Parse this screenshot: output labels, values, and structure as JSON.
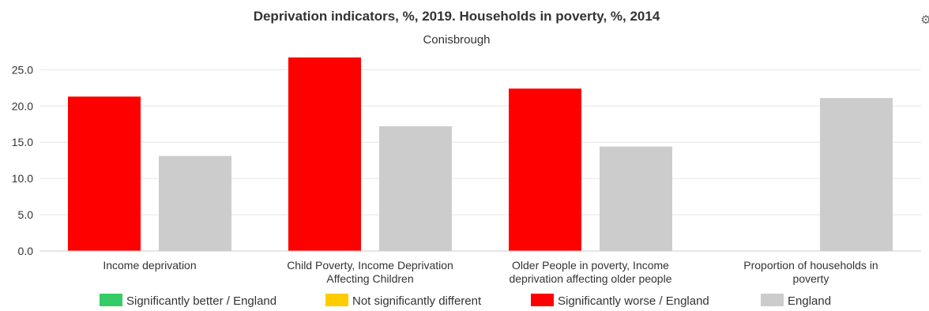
{
  "chart_data": {
    "type": "bar",
    "title": "Deprivation indicators, %, 2019. Households in poverty, %, 2014",
    "subtitle": "Conisbrough",
    "categories": [
      [
        "Income deprivation"
      ],
      [
        "Child Poverty, Income Deprivation",
        "Affecting Children"
      ],
      [
        "Older People in poverty, Income",
        "deprivation affecting older people"
      ],
      [
        "Proportion of households in",
        "poverty"
      ]
    ],
    "series": [
      {
        "name": "Conisbrough",
        "values": [
          21.3,
          26.7,
          22.4,
          null
        ],
        "colors": [
          "#ff0000",
          "#ff0000",
          "#ff0000",
          "#ff0000"
        ]
      },
      {
        "name": "England",
        "values": [
          13.1,
          17.2,
          14.4,
          21.1
        ],
        "colors": [
          "#cccccc",
          "#cccccc",
          "#cccccc",
          "#cccccc"
        ]
      }
    ],
    "ylim": [
      0,
      27
    ],
    "yticks": [
      "0.0",
      "5.0",
      "10.0",
      "15.0",
      "20.0",
      "25.0"
    ],
    "ytick_values": [
      0,
      5,
      10,
      15,
      20,
      25
    ],
    "grid": true,
    "legend": {
      "placement": "bottom",
      "items": [
        {
          "label": "Significantly better / England",
          "color": "#33cc66"
        },
        {
          "label": "Not significantly different",
          "color": "#ffcc00"
        },
        {
          "label": "Significantly worse / England",
          "color": "#ff0000"
        },
        {
          "label": "England",
          "color": "#cccccc"
        }
      ]
    }
  },
  "toolbar": {
    "menu_icon": "gear-icon"
  }
}
